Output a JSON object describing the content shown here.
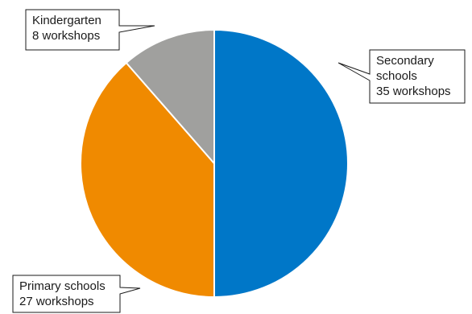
{
  "chart_data": {
    "type": "pie",
    "title": "",
    "unit": "workshops",
    "slices": [
      {
        "category": "Secondary schools",
        "value": 35,
        "label_lines": [
          "Secondary",
          "schools",
          "35 workshops"
        ],
        "color": "#0077c8"
      },
      {
        "category": "Primary schools",
        "value": 27,
        "label_lines": [
          "Primary schools",
          "27 workshops"
        ],
        "color": "#f08a00"
      },
      {
        "category": "Kindergarten",
        "value": 8,
        "label_lines": [
          "Kindergarten",
          "8 workshops"
        ],
        "color": "#a0a09e"
      }
    ],
    "start_angle_deg": 0,
    "direction": "clockwise",
    "legend": "none"
  }
}
